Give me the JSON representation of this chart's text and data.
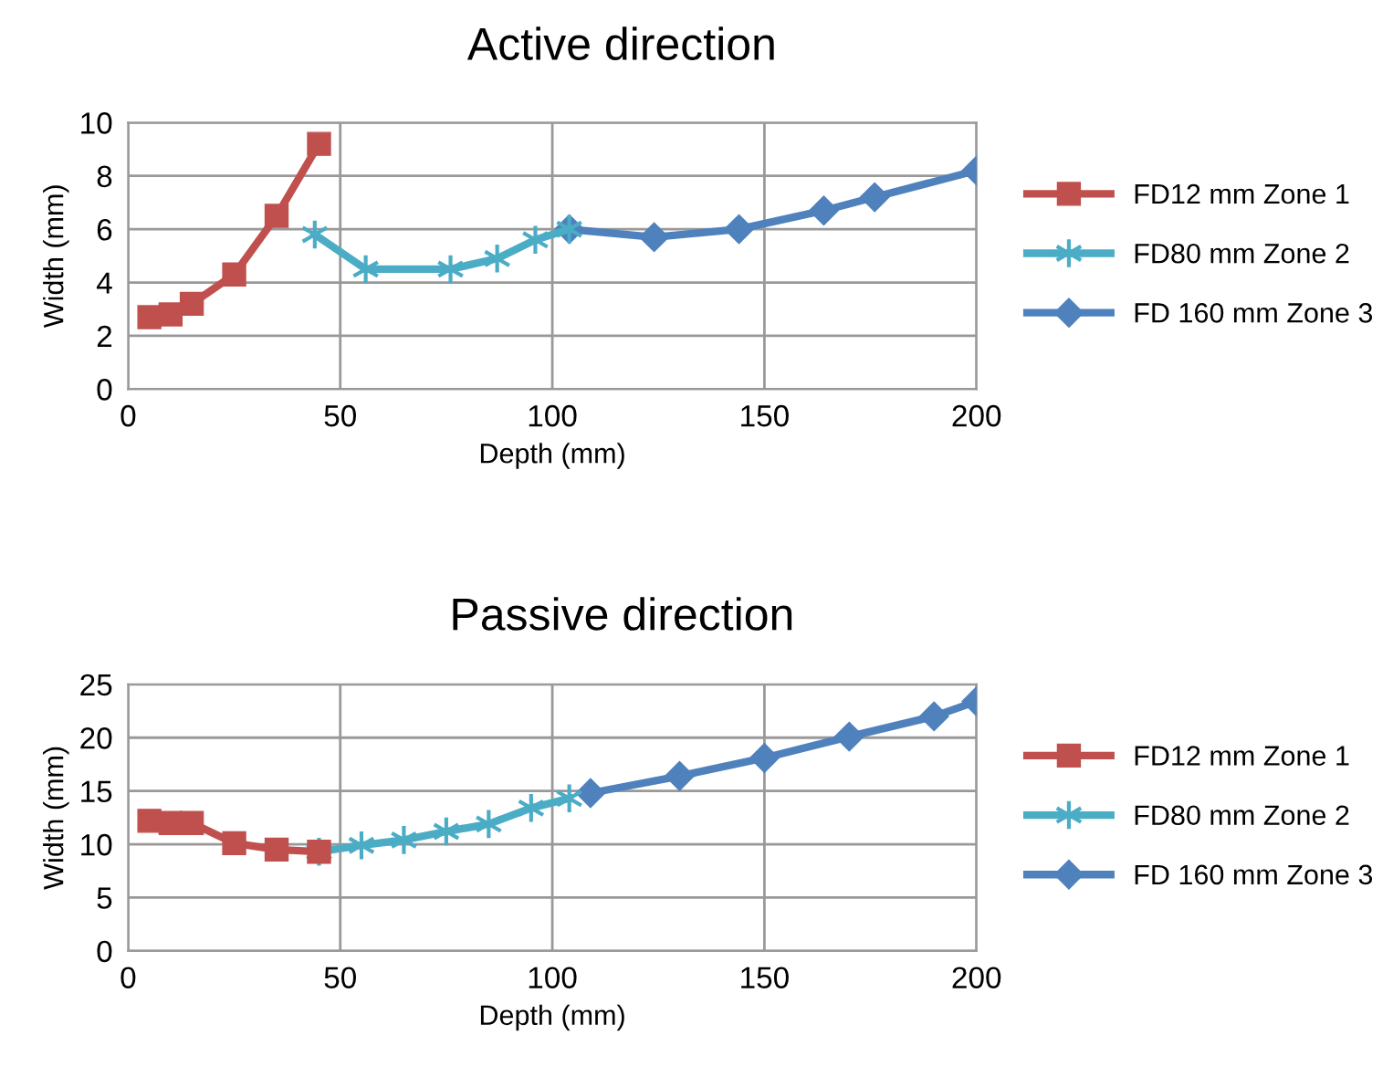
{
  "chart_data": [
    {
      "type": "line",
      "title": "Active direction",
      "xlabel": "Depth (mm)",
      "ylabel": "Width (mm)",
      "xlim": [
        0,
        200
      ],
      "xticks": [
        0,
        50,
        100,
        150,
        200
      ],
      "ylim": [
        0,
        10
      ],
      "yticks": [
        0,
        2,
        4,
        6,
        8,
        10
      ],
      "grid": true,
      "legend": "right",
      "line_style": "solid",
      "series": [
        {
          "name": "FD12 mm Zone 1",
          "color": "#c0504d",
          "marker": "square",
          "x": [
            5,
            10,
            15,
            25,
            35,
            45
          ],
          "values": [
            2.7,
            2.8,
            3.2,
            4.3,
            6.5,
            9.2
          ]
        },
        {
          "name": "FD80 mm Zone 2",
          "color": "#4bacc6",
          "marker": "cross",
          "x": [
            44,
            56,
            76,
            87,
            96,
            104
          ],
          "values": [
            5.8,
            4.5,
            4.5,
            4.9,
            5.6,
            6.0
          ]
        },
        {
          "name": "FD 160 mm Zone 3",
          "color": "#4f81bd",
          "marker": "diamond",
          "x": [
            104,
            124,
            144,
            164,
            176,
            200
          ],
          "values": [
            6.0,
            5.7,
            6.0,
            6.7,
            7.2,
            8.2
          ]
        }
      ]
    },
    {
      "type": "line",
      "title": "Passive direction",
      "xlabel": "Depth (mm)",
      "ylabel": "Width (mm)",
      "xlim": [
        0,
        200
      ],
      "xticks": [
        0,
        50,
        100,
        150,
        200
      ],
      "ylim": [
        0,
        25
      ],
      "yticks": [
        0,
        5,
        10,
        15,
        20,
        25
      ],
      "grid": true,
      "legend": "right",
      "line_style": "solid",
      "series": [
        {
          "name": "FD12 mm Zone 1",
          "color": "#c0504d",
          "marker": "square",
          "x": [
            5,
            10,
            15,
            25,
            35,
            45
          ],
          "values": [
            12.2,
            12.0,
            12.0,
            10.1,
            9.5,
            9.3
          ]
        },
        {
          "name": "FD80 mm Zone 2",
          "color": "#4bacc6",
          "marker": "cross",
          "x": [
            45,
            55,
            65,
            75,
            85,
            95,
            104
          ],
          "values": [
            9.3,
            9.9,
            10.4,
            11.2,
            11.9,
            13.4,
            14.3
          ]
        },
        {
          "name": "FD 160 mm Zone 3",
          "color": "#4f81bd",
          "marker": "diamond",
          "x": [
            109,
            130,
            150,
            170,
            190,
            200
          ],
          "values": [
            14.8,
            16.4,
            18.1,
            20.1,
            22.0,
            23.4
          ]
        }
      ]
    }
  ]
}
